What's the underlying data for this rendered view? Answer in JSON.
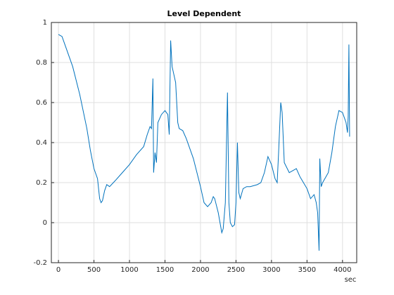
{
  "chart_data": {
    "type": "line",
    "title": "Level Dependent",
    "x_label": "sec",
    "x": [
      0,
      50,
      100,
      200,
      300,
      400,
      450,
      500,
      550,
      580,
      600,
      620,
      650,
      680,
      720,
      800,
      900,
      1000,
      1100,
      1200,
      1250,
      1290,
      1310,
      1330,
      1340,
      1360,
      1380,
      1400,
      1450,
      1500,
      1540,
      1560,
      1580,
      1600,
      1650,
      1680,
      1700,
      1750,
      1800,
      1900,
      2000,
      2050,
      2100,
      2150,
      2180,
      2200,
      2250,
      2300,
      2320,
      2350,
      2380,
      2400,
      2420,
      2450,
      2480,
      2500,
      2520,
      2540,
      2560,
      2600,
      2650,
      2700,
      2800,
      2850,
      2900,
      2950,
      3000,
      3050,
      3080,
      3100,
      3130,
      3150,
      3180,
      3250,
      3300,
      3350,
      3400,
      3450,
      3500,
      3550,
      3600,
      3630,
      3650,
      3670,
      3680,
      3700,
      3720,
      3800,
      3850,
      3900,
      3950,
      4000,
      4050,
      4070,
      4080,
      4090,
      4100
    ],
    "series": [
      {
        "name": "Level Dependent",
        "color": "#0072bd",
        "values": [
          0.94,
          0.93,
          0.88,
          0.78,
          0.64,
          0.47,
          0.36,
          0.27,
          0.22,
          0.12,
          0.1,
          0.11,
          0.16,
          0.19,
          0.18,
          0.21,
          0.25,
          0.29,
          0.34,
          0.38,
          0.44,
          0.48,
          0.47,
          0.72,
          0.25,
          0.35,
          0.3,
          0.5,
          0.54,
          0.56,
          0.54,
          0.44,
          0.91,
          0.78,
          0.7,
          0.5,
          0.47,
          0.46,
          0.42,
          0.32,
          0.18,
          0.1,
          0.08,
          0.1,
          0.13,
          0.12,
          0.05,
          -0.05,
          -0.03,
          0.1,
          0.65,
          0.1,
          0.0,
          -0.02,
          -0.01,
          0.1,
          0.4,
          0.15,
          0.12,
          0.17,
          0.18,
          0.18,
          0.19,
          0.2,
          0.25,
          0.33,
          0.29,
          0.22,
          0.2,
          0.35,
          0.6,
          0.55,
          0.3,
          0.25,
          0.26,
          0.27,
          0.23,
          0.2,
          0.17,
          0.12,
          0.14,
          0.1,
          0.05,
          -0.14,
          0.32,
          0.18,
          0.2,
          0.25,
          0.35,
          0.48,
          0.56,
          0.55,
          0.5,
          0.45,
          0.53,
          0.89,
          0.43
        ]
      }
    ],
    "xlim": [
      -100,
      4200
    ],
    "xticks": [
      0,
      500,
      1000,
      1500,
      2000,
      2500,
      3000,
      3500,
      4000
    ],
    "ylim": [
      -0.2,
      1
    ],
    "yticks": [
      -0.2,
      0,
      0.2,
      0.4,
      0.6,
      0.8,
      1
    ],
    "grid": true
  }
}
